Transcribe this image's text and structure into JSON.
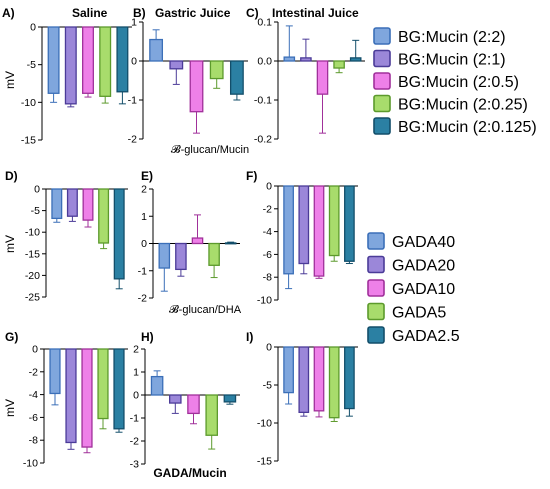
{
  "colors": {
    "c1": "#7fa6dd",
    "c1s": "#3b6fb8",
    "c2": "#9b87d9",
    "c2s": "#4b3b98",
    "c3": "#ee80e8",
    "c3s": "#a0309a",
    "c4": "#a8dc6c",
    "c4s": "#5c9a2c",
    "c5": "#2b80a3",
    "c5s": "#134e6a"
  },
  "legends": [
    {
      "id": "top",
      "entries": [
        "BG:Mucin (2:2)",
        "BG:Mucin (2:1)",
        "BG:Mucin (2:0.5)",
        "BG:Mucin (2:0.25)",
        "BG:Mucin (2:0.125)"
      ]
    },
    {
      "id": "bottom",
      "entries": [
        "GADA40",
        "GADA20",
        "GADA10",
        "GADA5",
        "GADA2.5"
      ]
    }
  ],
  "row_labels": {
    "row1": "𝓑-glucan/Mucin",
    "row2": "𝓑-glucan/DHA",
    "row3": "GADA/Mucin"
  },
  "chart_data": [
    {
      "id": "A",
      "letter": "A)",
      "title": "Saline",
      "type": "bar",
      "ylabel": "mV",
      "ylim": [
        -15,
        0
      ],
      "ticks": [
        0,
        -5,
        -10,
        -15
      ],
      "tick_labels": [
        "0",
        "-5",
        "-10",
        "-15"
      ],
      "series": [
        "BG:Mucin (2:2)",
        "BG:Mucin (2:1)",
        "BG:Mucin (2:0.5)",
        "BG:Mucin (2:0.25)",
        "BG:Mucin (2:0.125)"
      ],
      "values": [
        -8.8,
        -10.2,
        -8.8,
        -9.2,
        -8.6
      ],
      "errors": [
        1.2,
        0.4,
        0.5,
        0.9,
        1.6
      ]
    },
    {
      "id": "B",
      "letter": "B)",
      "title": "Gastric Juice",
      "type": "bar",
      "ylabel": "",
      "ylim": [
        -2,
        1
      ],
      "ticks": [
        1,
        0,
        -1,
        -2
      ],
      "tick_labels": [
        "1",
        "0",
        "-1",
        "-2"
      ],
      "series": [
        "BG:Mucin (2:2)",
        "BG:Mucin (2:1)",
        "BG:Mucin (2:0.5)",
        "BG:Mucin (2:0.25)",
        "BG:Mucin (2:0.125)"
      ],
      "values": [
        0.55,
        -0.2,
        -1.3,
        -0.45,
        -0.85
      ],
      "errors": [
        0.25,
        0.4,
        0.55,
        0.25,
        0.15
      ]
    },
    {
      "id": "C",
      "letter": "C)",
      "title": "Intestinal Juice",
      "type": "bar",
      "ylabel": "",
      "ylim": [
        -0.2,
        0.1
      ],
      "ticks": [
        0.1,
        0.0,
        -0.1,
        -0.2
      ],
      "tick_labels": [
        "0.1",
        "0.0",
        "-0.1",
        "-0.2"
      ],
      "series": [
        "BG:Mucin (2:2)",
        "BG:Mucin (2:1)",
        "BG:Mucin (2:0.5)",
        "BG:Mucin (2:0.25)",
        "BG:Mucin (2:0.125)"
      ],
      "values": [
        0.01,
        0.008,
        -0.085,
        -0.018,
        0.008
      ],
      "errors": [
        0.08,
        0.048,
        0.1,
        0.012,
        0.045
      ]
    },
    {
      "id": "D",
      "letter": "D)",
      "title": "",
      "type": "bar",
      "ylabel": "mV",
      "ylim": [
        -25,
        0
      ],
      "ticks": [
        0,
        -5,
        -10,
        -15,
        -20,
        -25
      ],
      "tick_labels": [
        "0",
        "-5",
        "-10",
        "-15",
        "-20",
        "-25"
      ],
      "series": [
        "GADA40",
        "GADA20",
        "GADA10",
        "GADA5",
        "GADA2.5"
      ],
      "values": [
        -6.8,
        -6.3,
        -7.2,
        -12.5,
        -20.8
      ],
      "errors": [
        0.9,
        1.2,
        1.6,
        1.3,
        2.3
      ]
    },
    {
      "id": "E",
      "letter": "E)",
      "title": "",
      "type": "bar",
      "ylabel": "",
      "ylim": [
        -2,
        2
      ],
      "ticks": [
        2,
        1,
        0,
        -1,
        -2
      ],
      "tick_labels": [
        "2",
        "1",
        "0",
        "-1",
        "-2"
      ],
      "series": [
        "GADA40",
        "GADA20",
        "GADA10",
        "GADA5",
        "GADA2.5"
      ],
      "values": [
        -0.9,
        -0.95,
        0.2,
        -0.8,
        0.02
      ],
      "errors": [
        0.85,
        0.25,
        0.85,
        0.45,
        0.03
      ]
    },
    {
      "id": "F",
      "letter": "F)",
      "title": "",
      "type": "bar",
      "ylabel": "",
      "ylim": [
        -10,
        0
      ],
      "ticks": [
        0,
        -2,
        -4,
        -6,
        -8,
        -10
      ],
      "tick_labels": [
        "0",
        "-2",
        "-4",
        "-6",
        "-8",
        "-10"
      ],
      "series": [
        "GADA40",
        "GADA20",
        "GADA10",
        "GADA5",
        "GADA2.5"
      ],
      "values": [
        -7.7,
        -6.8,
        -7.9,
        -6.1,
        -6.6
      ],
      "errors": [
        1.3,
        0.9,
        0.2,
        0.5,
        0.2
      ]
    },
    {
      "id": "G",
      "letter": "G)",
      "title": "",
      "type": "bar",
      "ylabel": "mV",
      "ylim": [
        -10,
        0
      ],
      "ticks": [
        0,
        -2,
        -4,
        -6,
        -8,
        -10
      ],
      "tick_labels": [
        "0",
        "-2",
        "-4",
        "-6",
        "-8",
        "-10"
      ],
      "series": [
        "GADA40",
        "GADA20",
        "GADA10",
        "GADA5",
        "GADA2.5"
      ],
      "values": [
        -3.9,
        -8.2,
        -8.6,
        -6.1,
        -7.0
      ],
      "errors": [
        1.0,
        0.6,
        0.5,
        0.9,
        0.3
      ]
    },
    {
      "id": "H",
      "letter": "H)",
      "title": "",
      "type": "bar",
      "ylabel": "",
      "ylim": [
        -3,
        2
      ],
      "ticks": [
        2,
        1,
        0,
        -1,
        -2,
        -3
      ],
      "tick_labels": [
        "2",
        "1",
        "0",
        "-1",
        "-2",
        "-3"
      ],
      "series": [
        "GADA40",
        "GADA20",
        "GADA10",
        "GADA5",
        "GADA2.5"
      ],
      "values": [
        0.8,
        -0.35,
        -0.8,
        -1.75,
        -0.3
      ],
      "errors": [
        0.25,
        0.45,
        0.45,
        0.6,
        0.1
      ]
    },
    {
      "id": "I",
      "letter": "I)",
      "title": "",
      "type": "bar",
      "ylabel": "",
      "ylim": [
        -15,
        0
      ],
      "ticks": [
        0,
        -5,
        -10,
        -15
      ],
      "tick_labels": [
        "0",
        "-5",
        "-10",
        "-15"
      ],
      "series": [
        "GADA40",
        "GADA20",
        "GADA10",
        "GADA5",
        "GADA2.5"
      ],
      "values": [
        -6.0,
        -8.6,
        -8.4,
        -9.3,
        -8.1
      ],
      "errors": [
        1.5,
        0.5,
        0.8,
        0.5,
        1.0
      ]
    }
  ]
}
